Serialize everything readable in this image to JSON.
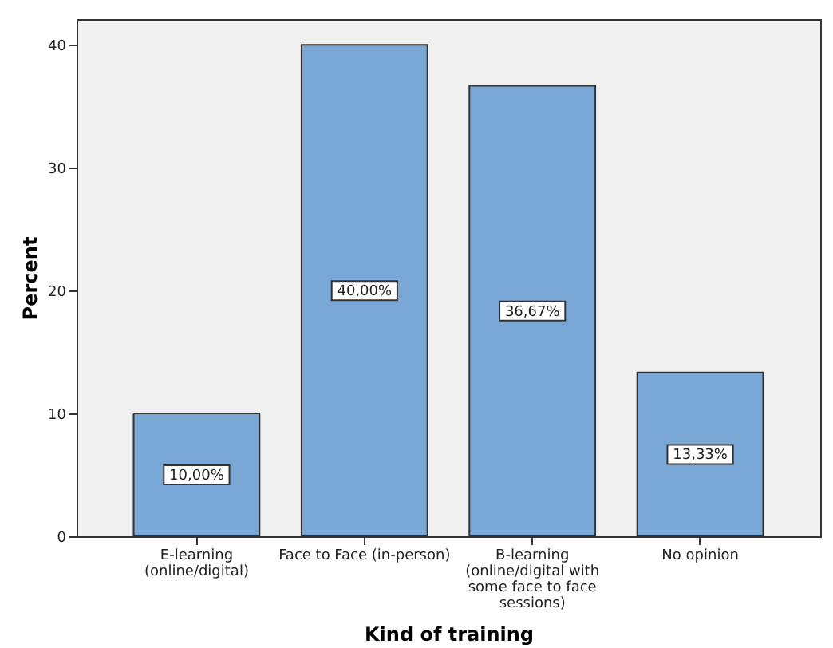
{
  "chart_data": {
    "type": "bar",
    "xlabel": "Kind of training",
    "ylabel": "Percent",
    "categories": [
      "E-learning (online/digital)",
      "Face to Face (in-person)",
      "B-learning (online/digital with some face to face sessions)",
      "No opinion"
    ],
    "values": [
      10,
      40,
      36.67,
      13.33
    ],
    "value_labels": [
      "10,00%",
      "40,00%",
      "36,67%",
      "13,33%"
    ],
    "color": "#7aa8d6",
    "ylim": [
      0,
      42.1
    ],
    "yticks": [
      0,
      10,
      20,
      30,
      40
    ],
    "grid": false
  }
}
